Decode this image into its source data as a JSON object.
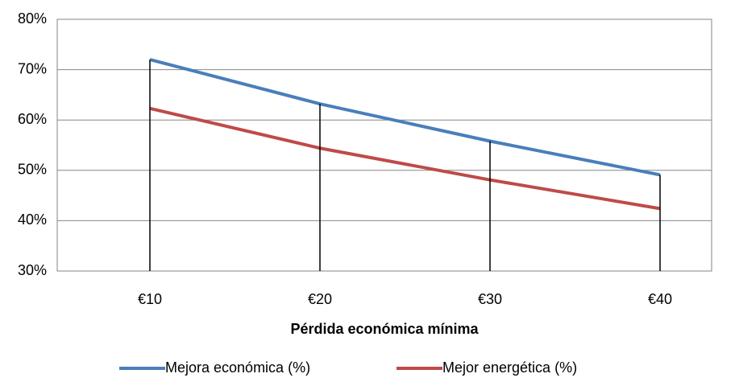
{
  "chart_data": {
    "type": "line",
    "x_label": "Pérdida económica mínima",
    "categories": [
      "€10",
      "€20",
      "€30",
      "€40"
    ],
    "series": [
      {
        "name": "Mejora económica (%)",
        "color": "#4a7ebb",
        "values": [
          72,
          63.2,
          55.8,
          49.1
        ]
      },
      {
        "name": "Mejor energética (%)",
        "color": "#be4b48",
        "values": [
          62.3,
          54.4,
          48.1,
          42.4
        ]
      }
    ],
    "ylim": [
      30,
      80
    ],
    "yticks": [
      {
        "value": 30,
        "label": "30%"
      },
      {
        "value": 40,
        "label": "40%"
      },
      {
        "value": 50,
        "label": "50%"
      },
      {
        "value": 60,
        "label": "60%"
      },
      {
        "value": 70,
        "label": "70%"
      },
      {
        "value": 80,
        "label": "80%"
      }
    ],
    "grid": true,
    "drop_lines": true,
    "legend": "bottom"
  }
}
